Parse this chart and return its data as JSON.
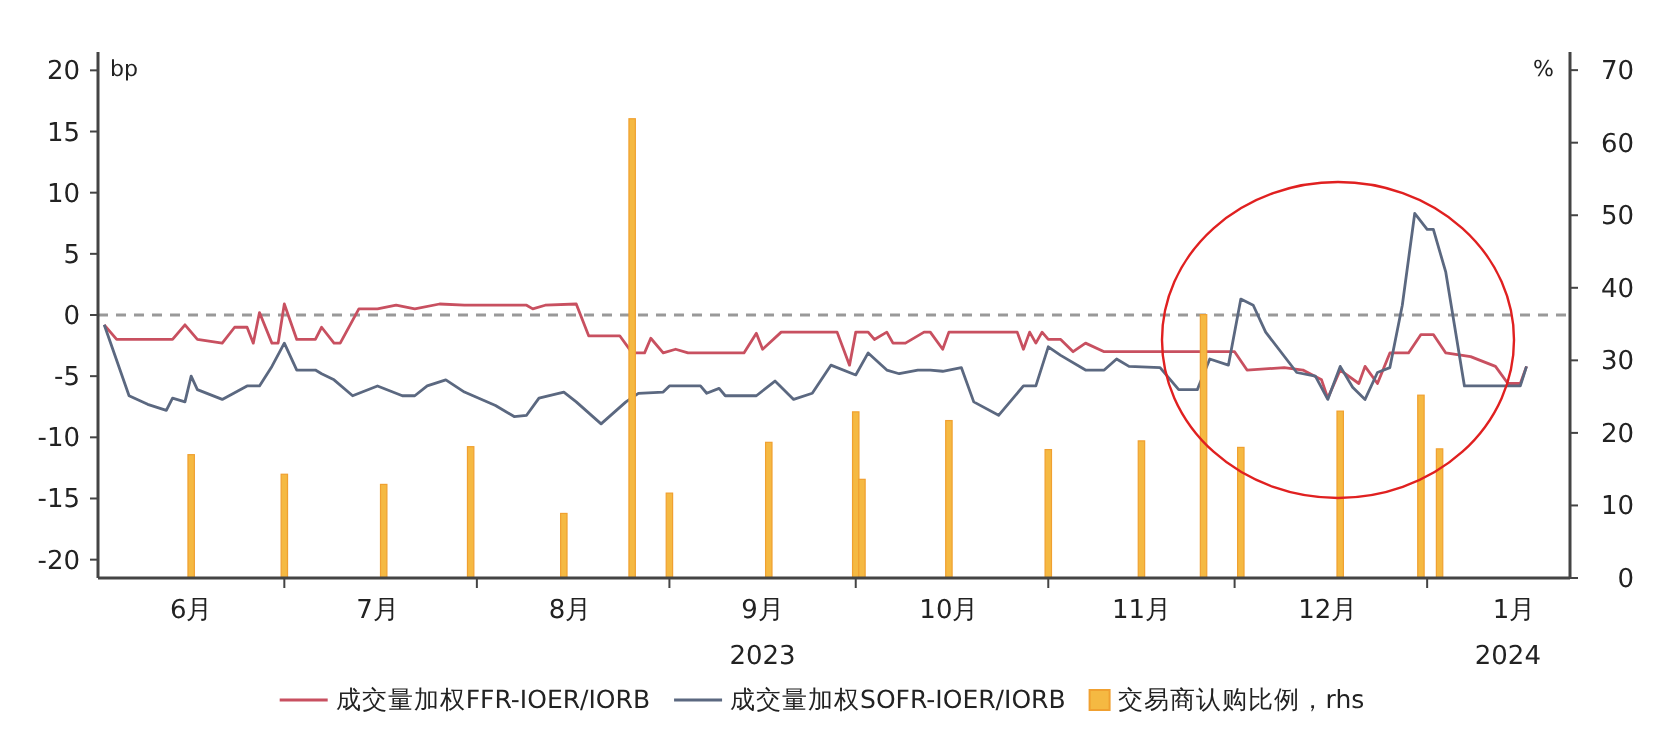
{
  "chart_data": {
    "type": "line",
    "ylabel": "bp",
    "y2label": "%",
    "xlim": [
      "2023-06-01",
      "2024-01-24"
    ],
    "xticks": [
      {
        "value": "2023-06-16",
        "label": "6月"
      },
      {
        "value": "2023-07-16",
        "label": "7月"
      },
      {
        "value": "2023-08-16",
        "label": "8月"
      },
      {
        "value": "2023-09-16",
        "label": "9月"
      },
      {
        "value": "2023-10-16",
        "label": "10月"
      },
      {
        "value": "2023-11-16",
        "label": "11月"
      },
      {
        "value": "2023-12-16",
        "label": "12月"
      },
      {
        "value": "2024-01-15",
        "label": "1月"
      },
      {
        "value": "2023-07-01",
        "label": null
      },
      {
        "value": "2023-08-01",
        "label": null
      },
      {
        "value": "2023-09-01",
        "label": null
      },
      {
        "value": "2023-10-01",
        "label": null
      },
      {
        "value": "2023-11-01",
        "label": null
      },
      {
        "value": "2023-12-01",
        "label": null
      },
      {
        "value": "2024-01-01",
        "label": null
      }
    ],
    "x2lim": [
      "2023-06-01",
      "2024-01-24"
    ],
    "x2ticks": [
      {
        "value": "2023-09-16",
        "label": "2023"
      },
      {
        "value": "2024-01-14",
        "label": "2024"
      }
    ],
    "ylim": [
      -21.5,
      21.5
    ],
    "yticks": [
      -20,
      -15,
      -10,
      -5,
      0,
      5,
      10,
      15,
      20
    ],
    "y2lim": [
      0,
      72.5
    ],
    "y2ticks": [
      0,
      10,
      20,
      30,
      40,
      50,
      60,
      70
    ],
    "ref_lines": [
      {
        "axis": "y",
        "value": 0,
        "color": "#999999",
        "line_style": "dashed"
      }
    ],
    "grid": false,
    "legend": "bottom",
    "series": [
      {
        "name": "成交量加权FFR-IOER/IORB",
        "color": "#c85060",
        "x": [
          "2023-06-02",
          "2023-06-04",
          "2023-06-13",
          "2023-06-15",
          "2023-06-17",
          "2023-06-21",
          "2023-06-23",
          "2023-06-25",
          "2023-06-26",
          "2023-06-27",
          "2023-06-29",
          "2023-06-30",
          "2023-07-01",
          "2023-07-03",
          "2023-07-06",
          "2023-07-07",
          "2023-07-09",
          "2023-07-10",
          "2023-07-13",
          "2023-07-16",
          "2023-07-19",
          "2023-07-22",
          "2023-07-26",
          "2023-07-30",
          "2023-08-05",
          "2023-08-09",
          "2023-08-10",
          "2023-08-12",
          "2023-08-17",
          "2023-08-19",
          "2023-08-24",
          "2023-08-26",
          "2023-08-28",
          "2023-08-29",
          "2023-08-31",
          "2023-09-02",
          "2023-09-04",
          "2023-09-13",
          "2023-09-15",
          "2023-09-16",
          "2023-09-19",
          "2023-09-28",
          "2023-09-30",
          "2023-10-01",
          "2023-10-03",
          "2023-10-04",
          "2023-10-06",
          "2023-10-07",
          "2023-10-09",
          "2023-10-12",
          "2023-10-13",
          "2023-10-15",
          "2023-10-16",
          "2023-10-27",
          "2023-10-28",
          "2023-10-29",
          "2023-10-30",
          "2023-10-31",
          "2023-11-01",
          "2023-11-03",
          "2023-11-05",
          "2023-11-07",
          "2023-11-10",
          "2023-12-01",
          "2023-12-03",
          "2023-12-09",
          "2023-12-12",
          "2023-12-15",
          "2023-12-16",
          "2023-12-18",
          "2023-12-21",
          "2023-12-22",
          "2023-12-24",
          "2023-12-26",
          "2023-12-29",
          "2023-12-31",
          "2024-01-02",
          "2024-01-04",
          "2024-01-08",
          "2024-01-12",
          "2024-01-14",
          "2024-01-16",
          "2024-01-17"
        ],
        "values": [
          -0.8,
          -2,
          -2,
          -0.8,
          -2,
          -2.3,
          -1,
          -1,
          -2.3,
          0.2,
          -2.3,
          -2.3,
          0.9,
          -2,
          -2,
          -1,
          -2.3,
          -2.3,
          0.5,
          0.5,
          0.8,
          0.5,
          0.9,
          0.8,
          0.8,
          0.8,
          0.5,
          0.8,
          0.9,
          -1.7,
          -1.7,
          -3.1,
          -3.1,
          -1.9,
          -3.1,
          -2.8,
          -3.1,
          -3.1,
          -1.5,
          -2.8,
          -1.4,
          -1.4,
          -4.1,
          -1.4,
          -1.4,
          -2,
          -1.4,
          -2.3,
          -2.3,
          -1.4,
          -1.4,
          -2.8,
          -1.4,
          -1.4,
          -2.8,
          -1.4,
          -2.3,
          -1.4,
          -2,
          -2,
          -3,
          -2.3,
          -3,
          -3,
          -4.5,
          -4.3,
          -4.5,
          -5.3,
          -6.8,
          -4.5,
          -5.6,
          -4.2,
          -5.6,
          -3.1,
          -3.1,
          -1.6,
          -1.6,
          -3.1,
          -3.4,
          -4.2,
          -5.6,
          -5.6,
          -4.2
        ]
      },
      {
        "name": "成交量加权SOFR-IOER/IORB",
        "color": "#5b6880",
        "x": [
          "2023-06-02",
          "2023-06-06",
          "2023-06-09",
          "2023-06-12",
          "2023-06-13",
          "2023-06-15",
          "2023-06-16",
          "2023-06-17",
          "2023-06-21",
          "2023-06-25",
          "2023-06-27",
          "2023-06-29",
          "2023-07-01",
          "2023-07-03",
          "2023-07-06",
          "2023-07-07",
          "2023-07-09",
          "2023-07-12",
          "2023-07-16",
          "2023-07-20",
          "2023-07-22",
          "2023-07-24",
          "2023-07-27",
          "2023-07-30",
          "2023-08-04",
          "2023-08-07",
          "2023-08-09",
          "2023-08-11",
          "2023-08-15",
          "2023-08-17",
          "2023-08-21",
          "2023-08-25",
          "2023-08-27",
          "2023-08-31",
          "2023-09-01",
          "2023-09-06",
          "2023-09-07",
          "2023-09-09",
          "2023-09-10",
          "2023-09-15",
          "2023-09-18",
          "2023-09-21",
          "2023-09-24",
          "2023-09-27",
          "2023-10-01",
          "2023-10-03",
          "2023-10-06",
          "2023-10-08",
          "2023-10-11",
          "2023-10-13",
          "2023-10-15",
          "2023-10-18",
          "2023-10-20",
          "2023-10-24",
          "2023-10-28",
          "2023-10-30",
          "2023-11-01",
          "2023-11-03",
          "2023-11-07",
          "2023-11-10",
          "2023-11-12",
          "2023-11-14",
          "2023-11-19",
          "2023-11-22",
          "2023-11-25",
          "2023-11-27",
          "2023-11-30",
          "2023-12-02",
          "2023-12-04",
          "2023-12-06",
          "2023-12-11",
          "2023-12-14",
          "2023-12-16",
          "2023-12-18",
          "2023-12-20",
          "2023-12-22",
          "2023-12-24",
          "2023-12-26",
          "2023-12-28",
          "2023-12-30",
          "2024-01-01",
          "2024-01-02",
          "2024-01-04",
          "2024-01-07",
          "2024-01-12",
          "2024-01-16",
          "2024-01-17"
        ],
        "values": [
          -0.8,
          -6.6,
          -7.3,
          -7.8,
          -6.8,
          -7.1,
          -5,
          -6.1,
          -6.9,
          -5.8,
          -5.8,
          -4.2,
          -2.3,
          -4.5,
          -4.5,
          -4.8,
          -5.3,
          -6.6,
          -5.8,
          -6.6,
          -6.6,
          -5.8,
          -5.3,
          -6.3,
          -7.4,
          -8.3,
          -8.2,
          -6.8,
          -6.3,
          -7.1,
          -8.9,
          -7.1,
          -6.4,
          -6.3,
          -5.8,
          -5.8,
          -6.4,
          -6,
          -6.6,
          -6.6,
          -5.4,
          -6.9,
          -6.4,
          -4.1,
          -4.9,
          -3.1,
          -4.5,
          -4.8,
          -4.5,
          -4.5,
          -4.6,
          -4.3,
          -7.1,
          -8.2,
          -5.8,
          -5.8,
          -2.6,
          -3.3,
          -4.5,
          -4.5,
          -3.6,
          -4.2,
          -4.3,
          -6.1,
          -6.1,
          -3.6,
          -4.1,
          1.3,
          0.8,
          -1.4,
          -4.7,
          -5,
          -6.9,
          -4.2,
          -5.9,
          -6.9,
          -4.7,
          -4.3,
          0.8,
          8.3,
          7,
          7,
          3.5,
          -5.8,
          -5.8,
          -5.8,
          -4.2
        ]
      },
      {
        "name": "交易商认购比例，rhs",
        "type": "bar",
        "axis": "y2",
        "color": "#f5b942",
        "x": [
          "2023-06-16",
          "2023-07-01",
          "2023-07-17",
          "2023-07-31",
          "2023-08-15",
          "2023-08-26",
          "2023-09-01",
          "2023-09-17",
          "2023-10-01",
          "2023-10-02",
          "2023-10-16",
          "2023-11-01",
          "2023-11-16",
          "2023-11-26",
          "2023-12-02",
          "2023-12-18",
          "2023-12-31",
          "2024-01-03"
        ],
        "values": [
          17,
          14.3,
          12.9,
          18.1,
          8.9,
          63.3,
          11.7,
          18.7,
          22.9,
          13.6,
          21.7,
          17.7,
          18.9,
          36.3,
          18,
          23,
          25.2,
          17.8
        ]
      }
    ]
  }
}
